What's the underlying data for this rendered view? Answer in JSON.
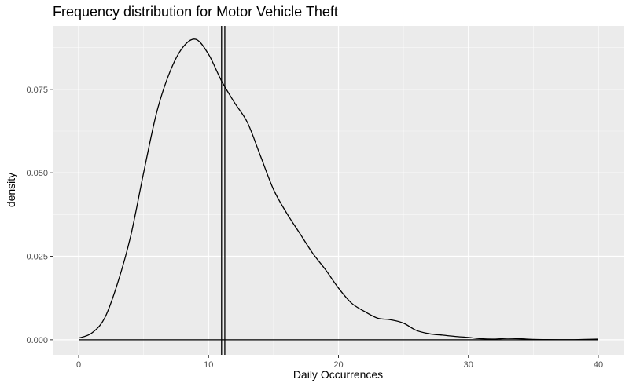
{
  "chart_data": {
    "type": "area",
    "title": "Frequency distribution for Motor Vehicle Theft",
    "xlabel": "Daily Occurrences",
    "ylabel": "density",
    "xlim": [
      -2,
      42
    ],
    "ylim": [
      -0.0045,
      0.094
    ],
    "x_ticks": [
      0,
      10,
      20,
      30,
      40
    ],
    "y_ticks": [
      0.0,
      0.025,
      0.05,
      0.075
    ],
    "y_tick_labels": [
      "0.000",
      "0.025",
      "0.050",
      "0.075"
    ],
    "grid": true,
    "series": [
      {
        "x": [
          0,
          1,
          2,
          3,
          4,
          5,
          6,
          7,
          8,
          9,
          10,
          11,
          12,
          13,
          14,
          15,
          16,
          17,
          18,
          19,
          20,
          21,
          22,
          23,
          24,
          25,
          26,
          27,
          28,
          29,
          30,
          31,
          32,
          33,
          34,
          35,
          36,
          37,
          38,
          39,
          40
        ],
        "y": [
          0.0005,
          0.002,
          0.0065,
          0.017,
          0.031,
          0.05,
          0.068,
          0.08,
          0.0875,
          0.09,
          0.0855,
          0.0775,
          0.071,
          0.065,
          0.055,
          0.045,
          0.038,
          0.032,
          0.026,
          0.021,
          0.0155,
          0.011,
          0.0085,
          0.0065,
          0.006,
          0.005,
          0.0028,
          0.0018,
          0.0014,
          0.001,
          0.0007,
          0.0003,
          0.0002,
          0.0004,
          0.0003,
          0.0001,
          5e-05,
          2e-05,
          1e-05,
          0.0001,
          0.0002
        ]
      }
    ],
    "vlines": [
      11.0,
      11.25
    ],
    "colors": {
      "panel": "#ebebeb",
      "grid_major": "#ffffff",
      "line": "#000000"
    }
  }
}
